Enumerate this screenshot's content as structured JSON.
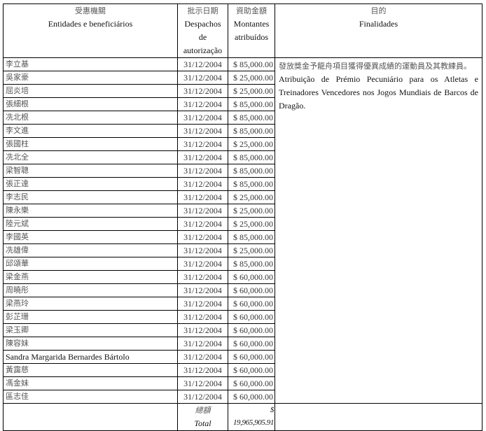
{
  "header": {
    "entities_zh": "受惠機關",
    "entities_pt": "Entidades e beneficiários",
    "date_zh": "批示日期",
    "date_pt_1": "Despachos de",
    "date_pt_2": "autorização",
    "amount_zh": "資助金額",
    "amount_pt_1": "Montantes",
    "amount_pt_2": "atribuídos",
    "purpose_zh": "目的",
    "purpose_pt": "Finalidades"
  },
  "purpose": {
    "zh": "發放獎金予龍舟項目獲得優異成績的運動員及其教練員。",
    "pt": "Atribuição de Prémio Pecuniário para os Atletas e Treinadores Vencedores nos Jogos Mundiais de Barcos de Dragão."
  },
  "rows": [
    {
      "name": "李立基",
      "date": "31/12/2004",
      "amount": "$ 85,000.00"
    },
    {
      "name": "吳家豪",
      "date": "31/12/2004",
      "amount": "$ 25,000.00"
    },
    {
      "name": "屈炎培",
      "date": "31/12/2004",
      "amount": "$ 25,000.00"
    },
    {
      "name": "張細根",
      "date": "31/12/2004",
      "amount": "$ 85,000.00"
    },
    {
      "name": "冼北根",
      "date": "31/12/2004",
      "amount": "$ 85,000.00"
    },
    {
      "name": "李文進",
      "date": "31/12/2004",
      "amount": "$ 85,000.00"
    },
    {
      "name": "張國柱",
      "date": "31/12/2004",
      "amount": "$ 25,000.00"
    },
    {
      "name": "冼北全",
      "date": "31/12/2004",
      "amount": "$ 85,000.00"
    },
    {
      "name": "梁智聰",
      "date": "31/12/2004",
      "amount": "$ 85,000.00"
    },
    {
      "name": "張正達",
      "date": "31/12/2004",
      "amount": "$ 85,000.00"
    },
    {
      "name": "李志民",
      "date": "31/12/2004",
      "amount": "$ 25,000.00"
    },
    {
      "name": "陳永樂",
      "date": "31/12/2004",
      "amount": "$ 25,000.00"
    },
    {
      "name": "陸元斌",
      "date": "31/12/2004",
      "amount": "$ 25,000.00"
    },
    {
      "name": "李國英",
      "date": "31/12/2004",
      "amount": "$ 85,000.00"
    },
    {
      "name": "冼雄偉",
      "date": "31/12/2004",
      "amount": "$ 25,000.00"
    },
    {
      "name": "邱頌華",
      "date": "31/12/2004",
      "amount": "$ 85,000.00"
    },
    {
      "name": "梁金燕",
      "date": "31/12/2004",
      "amount": "$ 60,000.00"
    },
    {
      "name": "周曉彤",
      "date": "31/12/2004",
      "amount": "$ 60,000.00"
    },
    {
      "name": "梁燕玲",
      "date": "31/12/2004",
      "amount": "$ 60,000.00"
    },
    {
      "name": "彭芷珊",
      "date": "31/12/2004",
      "amount": "$ 60,000.00"
    },
    {
      "name": "梁玉卿",
      "date": "31/12/2004",
      "amount": "$ 60,000.00"
    },
    {
      "name": "陳容妹",
      "date": "31/12/2004",
      "amount": "$ 60,000.00"
    },
    {
      "name": "Sandra Margarida Bernardes Bártolo",
      "date": "31/12/2004",
      "amount": "$ 60,000.00"
    },
    {
      "name": "黃靄慈",
      "date": "31/12/2004",
      "amount": "$ 60,000.00"
    },
    {
      "name": "馮金妹",
      "date": "31/12/2004",
      "amount": "$ 60,000.00"
    },
    {
      "name": "區志佳",
      "date": "31/12/2004",
      "amount": "$ 60,000.00"
    }
  ],
  "total": {
    "label_zh": "總額",
    "label_pt": "Total",
    "amount": "$ 19,965,905.91"
  }
}
